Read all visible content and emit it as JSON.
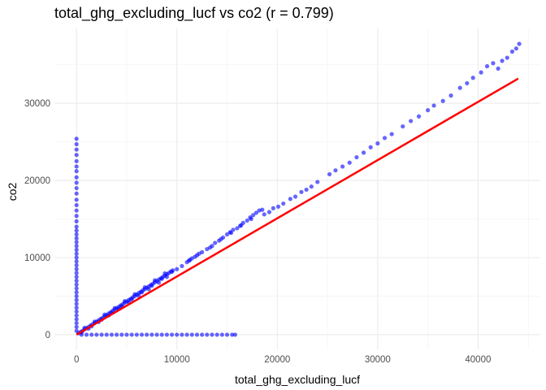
{
  "chart_data": {
    "type": "scatter",
    "title": "total_ghg_excluding_lucf vs co2 (r = 0.799)",
    "xlabel": "total_ghg_excluding_lucf",
    "ylabel": "co2",
    "xlim": [
      -2200,
      46200
    ],
    "ylim": [
      -1900,
      39700
    ],
    "x_ticks": [
      0,
      10000,
      20000,
      30000,
      40000
    ],
    "y_ticks": [
      0,
      10000,
      20000,
      30000
    ],
    "grid": true,
    "legend": "none",
    "point_color": "#0000ff",
    "line_color": "#ff0000",
    "series": [
      {
        "kind": "points",
        "points": [
          [
            0,
            25400
          ],
          [
            0,
            24700
          ],
          [
            0,
            24000
          ],
          [
            0,
            23300
          ],
          [
            0,
            22500
          ],
          [
            0,
            21800
          ],
          [
            0,
            21200
          ],
          [
            0,
            20400
          ],
          [
            0,
            19700
          ],
          [
            0,
            19000
          ],
          [
            0,
            18300
          ],
          [
            0,
            17500
          ],
          [
            0,
            16800
          ],
          [
            0,
            16100
          ],
          [
            0,
            15400
          ],
          [
            0,
            14700
          ],
          [
            0,
            14000
          ],
          [
            0,
            13500
          ],
          [
            0,
            13000
          ],
          [
            0,
            12500
          ],
          [
            0,
            12000
          ],
          [
            0,
            11500
          ],
          [
            0,
            11000
          ],
          [
            0,
            10500
          ],
          [
            0,
            10000
          ],
          [
            0,
            9500
          ],
          [
            0,
            9000
          ],
          [
            0,
            8500
          ],
          [
            0,
            8000
          ],
          [
            0,
            7500
          ],
          [
            0,
            7000
          ],
          [
            0,
            6500
          ],
          [
            0,
            6000
          ],
          [
            0,
            5500
          ],
          [
            0,
            5000
          ],
          [
            0,
            4500
          ],
          [
            0,
            4000
          ],
          [
            0,
            3500
          ],
          [
            0,
            3000
          ],
          [
            0,
            2500
          ],
          [
            0,
            2000
          ],
          [
            0,
            1500
          ],
          [
            0,
            1000
          ],
          [
            0,
            500
          ],
          [
            500,
            0
          ],
          [
            1000,
            0
          ],
          [
            1500,
            0
          ],
          [
            2000,
            0
          ],
          [
            2500,
            0
          ],
          [
            3000,
            0
          ],
          [
            3500,
            0
          ],
          [
            4000,
            0
          ],
          [
            4500,
            0
          ],
          [
            5000,
            0
          ],
          [
            5500,
            0
          ],
          [
            6000,
            0
          ],
          [
            6500,
            0
          ],
          [
            7000,
            0
          ],
          [
            7500,
            0
          ],
          [
            8000,
            0
          ],
          [
            8500,
            0
          ],
          [
            9000,
            0
          ],
          [
            9500,
            0
          ],
          [
            10000,
            0
          ],
          [
            10500,
            0
          ],
          [
            11000,
            0
          ],
          [
            11500,
            0
          ],
          [
            12000,
            0
          ],
          [
            12500,
            0
          ],
          [
            13000,
            0
          ],
          [
            13500,
            0
          ],
          [
            14000,
            0
          ],
          [
            14500,
            0
          ],
          [
            15000,
            0
          ],
          [
            15500,
            0
          ],
          [
            15800,
            0
          ],
          [
            200,
            200
          ],
          [
            400,
            350
          ],
          [
            600,
            500
          ],
          [
            800,
            700
          ],
          [
            1000,
            850
          ],
          [
            1200,
            1000
          ],
          [
            1400,
            1200
          ],
          [
            1600,
            1350
          ],
          [
            1800,
            1500
          ],
          [
            2000,
            1700
          ],
          [
            2200,
            1850
          ],
          [
            2400,
            2050
          ],
          [
            2600,
            2200
          ],
          [
            2800,
            2400
          ],
          [
            3000,
            2550
          ],
          [
            3200,
            2750
          ],
          [
            3400,
            2900
          ],
          [
            3600,
            3100
          ],
          [
            3800,
            3250
          ],
          [
            4000,
            3450
          ],
          [
            4200,
            3600
          ],
          [
            4400,
            3800
          ],
          [
            4600,
            3950
          ],
          [
            4800,
            4150
          ],
          [
            5000,
            4300
          ],
          [
            5200,
            4500
          ],
          [
            5400,
            4650
          ],
          [
            5600,
            4850
          ],
          [
            5800,
            5000
          ],
          [
            6000,
            5200
          ],
          [
            6200,
            5400
          ],
          [
            6400,
            5550
          ],
          [
            6600,
            5750
          ],
          [
            6800,
            5900
          ],
          [
            7000,
            6100
          ],
          [
            7200,
            6250
          ],
          [
            7400,
            6450
          ],
          [
            7600,
            6600
          ],
          [
            7800,
            6800
          ],
          [
            8000,
            6950
          ],
          [
            8200,
            7150
          ],
          [
            8400,
            7300
          ],
          [
            8600,
            7500
          ],
          [
            8800,
            7650
          ],
          [
            9000,
            7850
          ],
          [
            9200,
            8000
          ],
          [
            9400,
            8200
          ],
          [
            9600,
            8350
          ],
          [
            500,
            300
          ],
          [
            1500,
            1100
          ],
          [
            2500,
            1950
          ],
          [
            3500,
            2850
          ],
          [
            4500,
            3700
          ],
          [
            5500,
            4600
          ],
          [
            6500,
            5500
          ],
          [
            7500,
            6350
          ],
          [
            8500,
            7250
          ],
          [
            9500,
            8150
          ],
          [
            800,
            900
          ],
          [
            1800,
            1700
          ],
          [
            2800,
            2600
          ],
          [
            3800,
            3450
          ],
          [
            4800,
            4350
          ],
          [
            5800,
            5250
          ],
          [
            6800,
            6150
          ],
          [
            7800,
            7050
          ],
          [
            8800,
            7950
          ],
          [
            1200,
            800
          ],
          [
            2200,
            1650
          ],
          [
            3200,
            2500
          ],
          [
            4200,
            3350
          ],
          [
            5200,
            4200
          ],
          [
            6200,
            5050
          ],
          [
            7200,
            5900
          ],
          [
            8200,
            6750
          ],
          [
            9000,
            7500
          ],
          [
            10000,
            8500
          ],
          [
            10500,
            8900
          ],
          [
            11000,
            9400
          ],
          [
            11200,
            9600
          ],
          [
            11500,
            9900
          ],
          [
            11800,
            10100
          ],
          [
            12000,
            10300
          ],
          [
            12500,
            10700
          ],
          [
            13000,
            11100
          ],
          [
            13500,
            11500
          ],
          [
            13800,
            11900
          ],
          [
            14200,
            12200
          ],
          [
            14600,
            12600
          ],
          [
            15000,
            13000
          ],
          [
            15300,
            13300
          ],
          [
            15600,
            13600
          ],
          [
            16000,
            13800
          ],
          [
            16300,
            14100
          ],
          [
            16600,
            14500
          ],
          [
            17000,
            14800
          ],
          [
            17300,
            15200
          ],
          [
            17600,
            15500
          ],
          [
            17900,
            15800
          ],
          [
            18200,
            16100
          ],
          [
            18500,
            16200
          ],
          [
            11300,
            9700
          ],
          [
            12200,
            10500
          ],
          [
            13300,
            11300
          ],
          [
            14400,
            12400
          ],
          [
            15400,
            13200
          ],
          [
            16400,
            14200
          ],
          [
            17400,
            15000
          ],
          [
            18700,
            15600
          ],
          [
            19200,
            15900
          ],
          [
            19600,
            16400
          ],
          [
            20100,
            16600
          ],
          [
            20600,
            17000
          ],
          [
            21300,
            17600
          ],
          [
            21800,
            17900
          ],
          [
            22400,
            18500
          ],
          [
            22900,
            18800
          ],
          [
            23400,
            19200
          ],
          [
            24000,
            19800
          ],
          [
            25200,
            20800
          ],
          [
            25800,
            21300
          ],
          [
            26500,
            21800
          ],
          [
            27200,
            22300
          ],
          [
            27900,
            23000
          ],
          [
            28600,
            23600
          ],
          [
            29300,
            24300
          ],
          [
            30000,
            24800
          ],
          [
            30700,
            25500
          ],
          [
            31400,
            26000
          ],
          [
            32500,
            27000
          ],
          [
            33300,
            27700
          ],
          [
            34100,
            28300
          ],
          [
            35000,
            29100
          ],
          [
            35600,
            29700
          ],
          [
            36500,
            30300
          ],
          [
            37300,
            31000
          ],
          [
            38200,
            32000
          ],
          [
            38900,
            32600
          ],
          [
            39500,
            33300
          ],
          [
            40300,
            34000
          ],
          [
            40900,
            34800
          ],
          [
            41500,
            35200
          ],
          [
            42000,
            34500
          ],
          [
            42400,
            35500
          ],
          [
            42900,
            35900
          ],
          [
            43400,
            36700
          ],
          [
            43800,
            37100
          ],
          [
            44100,
            37700
          ]
        ]
      },
      {
        "kind": "regression-line",
        "points": [
          [
            0,
            0
          ],
          [
            44000,
            33200
          ]
        ]
      }
    ]
  }
}
